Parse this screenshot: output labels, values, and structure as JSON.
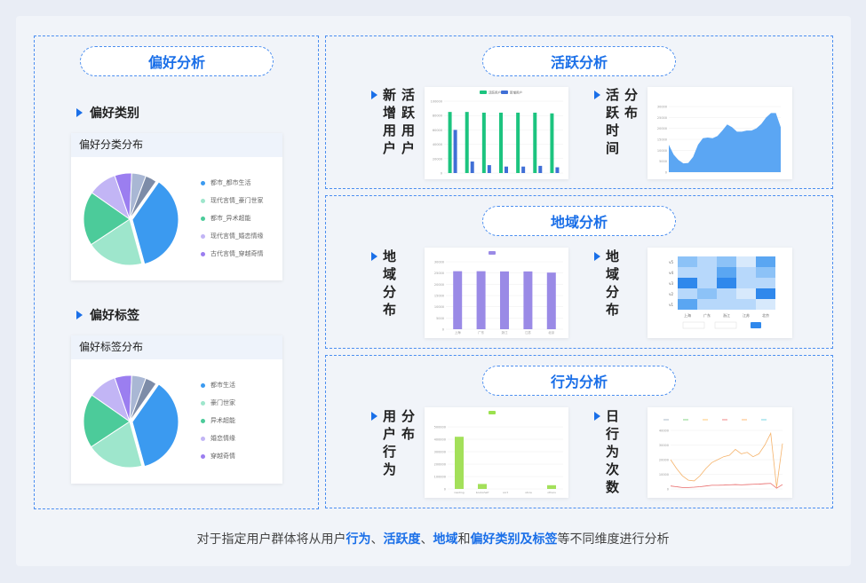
{
  "left": {
    "title": "偏好分析",
    "category_section": "偏好类别",
    "category_card_title": "偏好分类分布",
    "category_legend": [
      "都市_都市生活",
      "现代言情_豪门世家",
      "都市_异术超能",
      "现代言情_婚恋情缘",
      "古代言情_穿越奇情"
    ],
    "tag_section": "偏好标签",
    "tag_card_title": "偏好标签分布",
    "tag_legend": [
      "都市生活",
      "豪门世家",
      "异术超能",
      "婚恋情缘",
      "穿越奇情"
    ]
  },
  "colors": {
    "accent": "#1a6fe8",
    "pie": [
      "#3b9af0",
      "#9ee6cc",
      "#4ccb9a",
      "#c2b5f5",
      "#9b7ef0",
      "#a9b7d4",
      "#7d8ca8"
    ]
  },
  "activity": {
    "title": "活跃分析",
    "label1_col1": "新增用户",
    "label1_col2": "活跃用户",
    "label2_col1": "活跃时间",
    "label2_col2": "分布"
  },
  "region": {
    "title": "地域分析",
    "label1": "地域分布",
    "label2": "地域分布"
  },
  "behavior": {
    "title": "行为分析",
    "label1_col1": "用户行为",
    "label1_col2": "分布",
    "label2": "日行为次数"
  },
  "caption": {
    "p1": "对于指定用户群体将从用户",
    "h1": "行为",
    "p2": "、",
    "h2": "活跃度",
    "p3": "、",
    "h3": "地域",
    "p4": "和",
    "h4": "偏好类别及标签",
    "p5": "等不同维度进行分析"
  },
  "chart_data": [
    {
      "type": "pie",
      "title": "偏好分类分布",
      "values": [
        36,
        20,
        19,
        10,
        6,
        5,
        4
      ]
    },
    {
      "type": "pie",
      "title": "偏好标签分布",
      "values": [
        36,
        20,
        19,
        10,
        6,
        5,
        4
      ]
    },
    {
      "type": "bar",
      "ylim": [
        0,
        100000
      ],
      "yticks": [
        "0",
        "20000",
        "40000",
        "60000",
        "80000",
        "100000"
      ],
      "categories": [
        "1",
        "2",
        "3",
        "4",
        "5",
        "6",
        "7"
      ],
      "series": [
        {
          "name": "活跃用户",
          "values": [
            85000,
            85000,
            84000,
            84000,
            84000,
            84000,
            83000
          ]
        },
        {
          "name": "新增用户",
          "values": [
            60000,
            16000,
            11000,
            9000,
            9000,
            10000,
            8000
          ]
        }
      ]
    },
    {
      "type": "area",
      "ylim": [
        0,
        30000
      ],
      "yticks": [
        "0",
        "5000",
        "10000",
        "15000",
        "20000",
        "25000",
        "30000"
      ],
      "values": [
        12500,
        8000,
        5500,
        4000,
        4200,
        7000,
        12500,
        15500,
        15800,
        15500,
        16500,
        19000,
        21800,
        20500,
        18500,
        18500,
        19000,
        19000,
        20000,
        22000,
        25000,
        27000,
        27000,
        20500
      ]
    },
    {
      "type": "bar",
      "ylim": [
        0,
        30000
      ],
      "yticks": [
        "0",
        "5000",
        "10000",
        "15000",
        "20000",
        "25000",
        "30000"
      ],
      "categories": [
        "上海",
        "广东",
        "浙江",
        "江苏",
        "北京"
      ],
      "values": [
        25800,
        25800,
        25700,
        25700,
        25200
      ]
    },
    {
      "type": "heatmap",
      "rows": [
        "v5",
        "v4",
        "v3",
        "v2",
        "v1"
      ],
      "cols": [
        "上海",
        "广东",
        "浙江",
        "江苏",
        "北京"
      ],
      "values": [
        [
          3,
          2,
          3,
          1,
          4
        ],
        [
          2,
          2,
          4,
          2,
          3
        ],
        [
          5,
          2,
          5,
          2,
          2
        ],
        [
          2,
          3,
          2,
          1,
          5
        ],
        [
          4,
          2,
          2,
          2,
          1
        ]
      ]
    },
    {
      "type": "bar",
      "ylim": [
        0,
        500000
      ],
      "yticks": [
        "0",
        "100000",
        "200000",
        "300000",
        "400000",
        "500000"
      ],
      "categories": [
        "reading",
        "bookshelf",
        "sort",
        "store",
        "others"
      ],
      "values": [
        420000,
        40000,
        0,
        0,
        30000
      ]
    },
    {
      "type": "line",
      "ylim": [
        0,
        40000
      ],
      "yticks": [
        "0",
        "10000",
        "20000",
        "30000",
        "40000"
      ],
      "series": [
        {
          "values": [
            20000,
            14000,
            9000,
            6000,
            5500,
            9000,
            14000,
            18000,
            20000,
            22000,
            23000,
            27000,
            24000,
            25000,
            22000,
            24000,
            30000,
            38000,
            1000,
            31000
          ],
          "color": "#f5b36b"
        },
        {
          "values": [
            2000,
            1500,
            1000,
            1000,
            1200,
            1500,
            2000,
            2500,
            2500,
            2600,
            2800,
            3000,
            2800,
            3000,
            3200,
            3300,
            3600,
            3800,
            500,
            3000
          ],
          "color": "#e86a6a"
        }
      ]
    }
  ]
}
